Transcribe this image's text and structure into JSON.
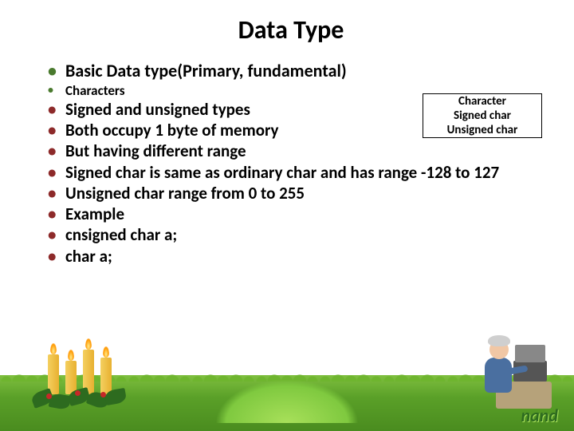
{
  "title": {
    "text": "Data Type",
    "fontsize": 32,
    "color": "#000000"
  },
  "bullets": [
    {
      "text": "Basic Data type(Primary, fundamental)",
      "size": "large",
      "style": "first-bullet"
    },
    {
      "text": "Characters",
      "size": "small",
      "style": "small-bullet"
    },
    {
      "text": "Signed and unsigned types",
      "size": "med",
      "style": "red"
    },
    {
      "text": "Both occupy 1 byte of memory",
      "size": "med",
      "style": "red"
    },
    {
      "text": "But having different range",
      "size": "med",
      "style": "red"
    },
    {
      "text": "Signed char is same as ordinary char and has range -128 to 127",
      "size": "med",
      "style": "red"
    },
    {
      "text": "Unsigned char range from 0 to 255",
      "size": "med",
      "style": "red"
    },
    {
      "text": "Example",
      "size": "med",
      "style": "red"
    },
    {
      "text": "cnsigned char a;",
      "size": "med",
      "style": "red"
    },
    {
      "text": "char a;",
      "size": "med",
      "style": "red"
    }
  ],
  "char_box": {
    "header": "Character",
    "rows": [
      "Signed char",
      "Unsigned char"
    ],
    "border_color": "#000000",
    "fontsize": 15
  },
  "page_number": {
    "text": "nand",
    "fontsize": 22,
    "color": "#2d6b1f"
  },
  "decor": {
    "grass_colors": [
      "#7fbf3f",
      "#5aa028",
      "#4a8c1f"
    ],
    "candle_color": "#e8b030",
    "holly_leaf": "#2d6b1f",
    "holly_berry": "#c62828",
    "person_shirt": "#4a6fa0",
    "person_skin": "#f1c7a5",
    "person_hair": "#cfcfcf",
    "desk_color": "#b6a27a"
  }
}
